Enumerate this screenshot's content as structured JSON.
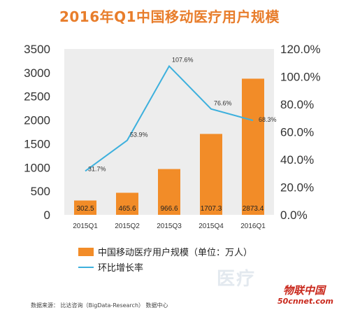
{
  "chart_data": {
    "type": "bar",
    "title": "2016年Q1中国移动医疗用户规模",
    "categories": [
      "2015Q1",
      "2015Q2",
      "2015Q3",
      "2015Q4",
      "2016Q1"
    ],
    "series": [
      {
        "name": "中国移动医疗用户规模（单位：万人）",
        "type": "bar",
        "axis": "left",
        "values": [
          302.5,
          465.6,
          966.6,
          1707.3,
          2873.4
        ],
        "labels": [
          "302.5",
          "465.6",
          "966.6",
          "1707.3",
          "2873.4"
        ]
      },
      {
        "name": "环比增长率",
        "type": "line",
        "axis": "right",
        "values": [
          31.7,
          53.9,
          107.6,
          76.6,
          68.3
        ],
        "labels": [
          "31.7%",
          "53.9%",
          "107.6%",
          "76.6%",
          "68.3%"
        ]
      }
    ],
    "y_left": {
      "min": 0,
      "max": 3500,
      "ticks": [
        "0",
        "500",
        "1000",
        "1500",
        "2000",
        "2500",
        "3000",
        "3500"
      ]
    },
    "y_right": {
      "min": 0,
      "max": 120,
      "ticks": [
        "0.0%",
        "20.0%",
        "40.0%",
        "60.0%",
        "80.0%",
        "100.0%",
        "120.0%"
      ]
    },
    "grid": false,
    "legend_position": "bottom",
    "colors": {
      "bar": "#f28c28",
      "line": "#3db0dd",
      "title": "#e87d2b",
      "plot_bg": "#ededed"
    }
  },
  "source_text": "数据来源： 比达咨询（BigData-Research） 数据中心",
  "watermark": {
    "text1": "医疗",
    "text2": "物联中国",
    "text3": "50cnnet.com"
  }
}
